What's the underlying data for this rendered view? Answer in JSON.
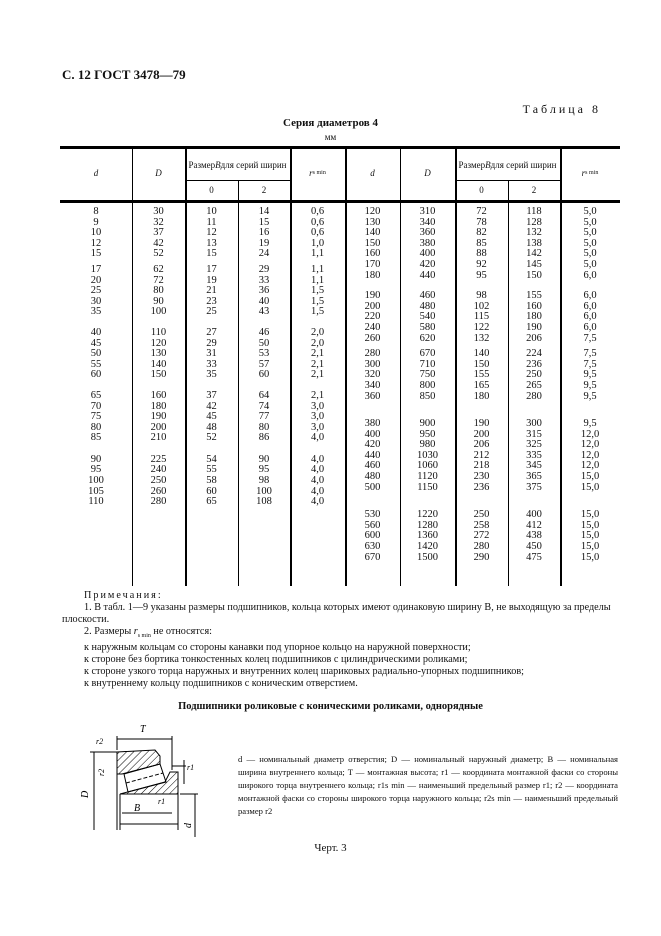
{
  "header": "С. 12 ГОСТ 3478—79",
  "table_number": "Таблица 8",
  "table_title": "Серия диаметров 4",
  "unit": "мм",
  "columns": {
    "d": "d",
    "D": "D",
    "B_group": "Размер B для серий ширин",
    "s0": "0",
    "s2": "2",
    "rs": "r",
    "rs_sub": "s min"
  },
  "left_groups": [
    [
      [
        "8",
        "30",
        "10",
        "14",
        "0,6"
      ],
      [
        "9",
        "32",
        "11",
        "15",
        "0,6"
      ],
      [
        "10",
        "37",
        "12",
        "16",
        "0,6"
      ],
      [
        "12",
        "42",
        "13",
        "19",
        "1,0"
      ],
      [
        "15",
        "52",
        "15",
        "24",
        "1,1"
      ]
    ],
    [
      [
        "17",
        "62",
        "17",
        "29",
        "1,1"
      ],
      [
        "20",
        "72",
        "19",
        "33",
        "1,1"
      ],
      [
        "25",
        "80",
        "21",
        "36",
        "1,5"
      ],
      [
        "30",
        "90",
        "23",
        "40",
        "1,5"
      ],
      [
        "35",
        "100",
        "25",
        "43",
        "1,5"
      ]
    ],
    [
      [
        "40",
        "110",
        "27",
        "46",
        "2,0"
      ],
      [
        "45",
        "120",
        "29",
        "50",
        "2,0"
      ],
      [
        "50",
        "130",
        "31",
        "53",
        "2,1"
      ],
      [
        "55",
        "140",
        "33",
        "57",
        "2,1"
      ],
      [
        "60",
        "150",
        "35",
        "60",
        "2,1"
      ]
    ],
    [
      [
        "65",
        "160",
        "37",
        "64",
        "2,1"
      ],
      [
        "70",
        "180",
        "42",
        "74",
        "3,0"
      ],
      [
        "75",
        "190",
        "45",
        "77",
        "3,0"
      ],
      [
        "80",
        "200",
        "48",
        "80",
        "3,0"
      ],
      [
        "85",
        "210",
        "52",
        "86",
        "4,0"
      ]
    ],
    [
      [
        "90",
        "225",
        "54",
        "90",
        "4,0"
      ],
      [
        "95",
        "240",
        "55",
        "95",
        "4,0"
      ],
      [
        "100",
        "250",
        "58",
        "98",
        "4,0"
      ],
      [
        "105",
        "260",
        "60",
        "100",
        "4,0"
      ],
      [
        "110",
        "280",
        "65",
        "108",
        "4,0"
      ]
    ]
  ],
  "right_groups": [
    [
      [
        "120",
        "310",
        "72",
        "118",
        "5,0"
      ],
      [
        "130",
        "340",
        "78",
        "128",
        "5,0"
      ],
      [
        "140",
        "360",
        "82",
        "132",
        "5,0"
      ],
      [
        "150",
        "380",
        "85",
        "138",
        "5,0"
      ],
      [
        "160",
        "400",
        "88",
        "142",
        "5,0"
      ],
      [
        "170",
        "420",
        "92",
        "145",
        "5,0"
      ],
      [
        "180",
        "440",
        "95",
        "150",
        "6,0"
      ]
    ],
    [
      [
        "190",
        "460",
        "98",
        "155",
        "6,0"
      ],
      [
        "200",
        "480",
        "102",
        "160",
        "6,0"
      ],
      [
        "220",
        "540",
        "115",
        "180",
        "6,0"
      ],
      [
        "240",
        "580",
        "122",
        "190",
        "6,0"
      ],
      [
        "260",
        "620",
        "132",
        "206",
        "7,5"
      ]
    ],
    [
      [
        "280",
        "670",
        "140",
        "224",
        "7,5"
      ],
      [
        "300",
        "710",
        "150",
        "236",
        "7,5"
      ],
      [
        "320",
        "750",
        "155",
        "250",
        "9,5"
      ],
      [
        "340",
        "800",
        "165",
        "265",
        "9,5"
      ],
      [
        "360",
        "850",
        "180",
        "280",
        "9,5"
      ]
    ],
    [
      [
        "380",
        "900",
        "190",
        "300",
        "9,5"
      ],
      [
        "400",
        "950",
        "200",
        "315",
        "12,0"
      ],
      [
        "420",
        "980",
        "206",
        "325",
        "12,0"
      ],
      [
        "440",
        "1030",
        "212",
        "335",
        "12,0"
      ],
      [
        "460",
        "1060",
        "218",
        "345",
        "12,0"
      ],
      [
        "480",
        "1120",
        "230",
        "365",
        "15,0"
      ],
      [
        "500",
        "1150",
        "236",
        "375",
        "15,0"
      ]
    ],
    [
      [
        "530",
        "1220",
        "250",
        "400",
        "15,0"
      ],
      [
        "560",
        "1280",
        "258",
        "412",
        "15,0"
      ],
      [
        "600",
        "1360",
        "272",
        "438",
        "15,0"
      ],
      [
        "630",
        "1420",
        "280",
        "450",
        "15,0"
      ],
      [
        "670",
        "1500",
        "290",
        "475",
        "15,0"
      ]
    ]
  ],
  "notes": {
    "heading": "Примечания:",
    "n1": "1. В табл. 1—9 указаны размеры подшипников, кольца которых имеют одинаковую ширину B, не выходящую за пределы плоскости.",
    "n2_pre": "2. Размеры ",
    "n2_r": "r",
    "n2_sub": "s min",
    "n2_post": " не относятся:",
    "items": [
      "к наружным кольцам со стороны канавки под упорное кольцо на наружной поверхности;",
      "к стороне без бортика тонкостенных колец подшипников с цилиндрическими роликами;",
      "к стороне узкого торца наружных и внутренних колец шариковых радиально-упорных подшипников;",
      "к внутреннему кольцу подшипников с коническим отверстием."
    ]
  },
  "figure": {
    "title": "Подшипники роликовые с коническими роликами, однорядные",
    "labels": {
      "T": "T",
      "r2": "r2",
      "D": "D",
      "B": "B",
      "r1": "r1",
      "d": "d"
    },
    "legend": "d — номинальный диаметр отверстия; D — номинальный наружный диаметр; B — номинальная ширина внутреннего кольца; T — монтажная высота; r1 — координата монтажной фаски со стороны широкого торца внутреннего кольца; r1s min — наименьший предельный размер r1; r2 — координата монтажной фаски со стороны широкого торца наружного кольца; r2s min — наименьший предельный размер r2",
    "caption": "Черт. 3"
  }
}
